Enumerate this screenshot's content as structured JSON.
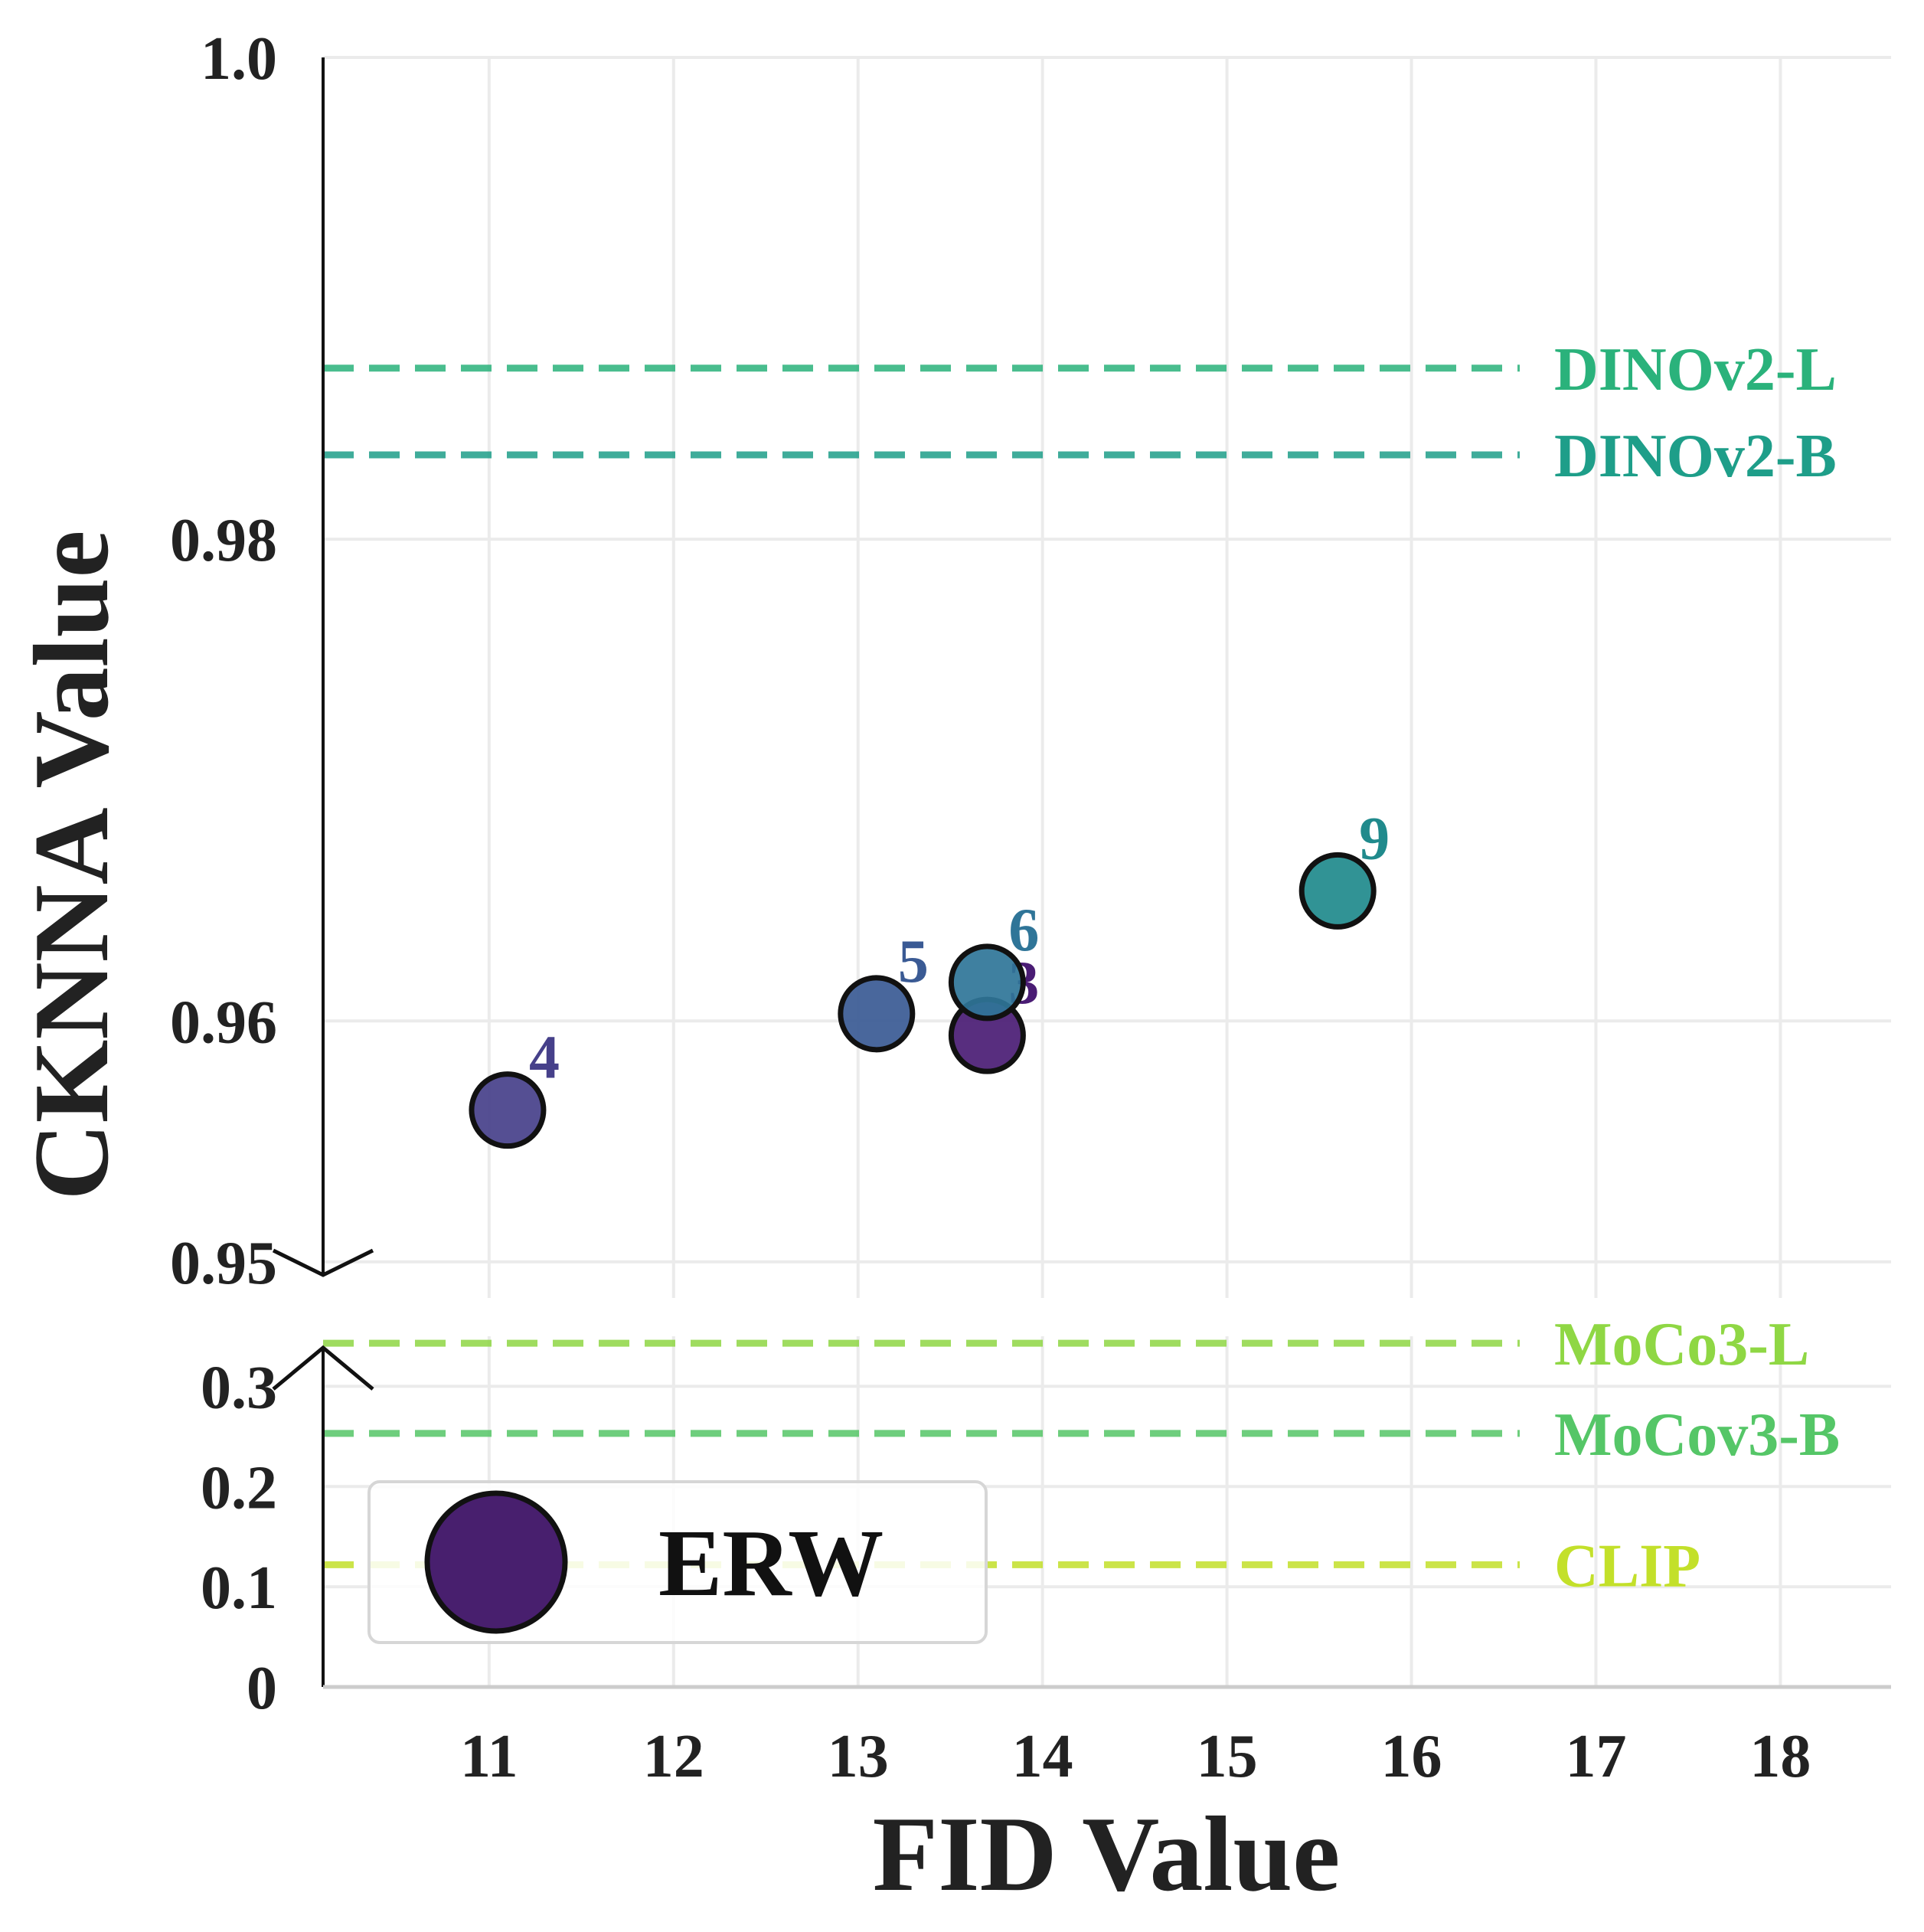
{
  "chart_data": {
    "type": "scatter",
    "title": "",
    "xlabel": "FID Value",
    "ylabel": "CKNNA Value",
    "xlim": [
      10.1,
      18.6
    ],
    "x_ticks": [
      "11",
      "12",
      "13",
      "14",
      "15",
      "16",
      "17",
      "18"
    ],
    "y_upper": {
      "range": [
        0.9485,
        1.0
      ],
      "ticks": [
        "0.95",
        "0.96",
        "0.98",
        "1.0"
      ],
      "tick_values": [
        0.95,
        0.96,
        0.98,
        1.0
      ]
    },
    "y_lower": {
      "range": [
        0.0,
        0.35
      ],
      "ticks": [
        "0",
        "0.1",
        "0.2",
        "0.3"
      ],
      "tick_values": [
        0.0,
        0.1,
        0.2,
        0.3
      ]
    },
    "axis_break": true,
    "grid": true,
    "series": [
      {
        "name": "ERW",
        "points": [
          {
            "label": "4",
            "x": 11.1,
            "y": 0.9563,
            "color": "#46408a"
          },
          {
            "label": "5",
            "x": 13.1,
            "y": 0.9603,
            "color": "#3a5a94"
          },
          {
            "label": "3",
            "x": 13.7,
            "y": 0.9594,
            "color": "#4a1c74"
          },
          {
            "label": "6",
            "x": 13.7,
            "y": 0.9616,
            "color": "#2f7598"
          },
          {
            "label": "9",
            "x": 15.6,
            "y": 0.9654,
            "color": "#208a8c"
          }
        ]
      }
    ],
    "reference_lines": [
      {
        "label": "DINOv2-L",
        "y": 0.9871,
        "axis": "upper",
        "color": "#2ab27b"
      },
      {
        "label": "DINOv2-B",
        "y": 0.9835,
        "axis": "upper",
        "color": "#1e9e89"
      },
      {
        "label": "MoCo3-L",
        "y": 0.343,
        "axis": "lower",
        "color": "#8fd744"
      },
      {
        "label": "MoCov3-B",
        "y": 0.253,
        "axis": "lower",
        "color": "#55c667"
      },
      {
        "label": "CLIP",
        "y": 0.122,
        "axis": "lower",
        "color": "#c3e02a"
      }
    ],
    "legend": {
      "label": "ERW",
      "placement": "lower-left",
      "marker_color": "#481f6e"
    }
  }
}
